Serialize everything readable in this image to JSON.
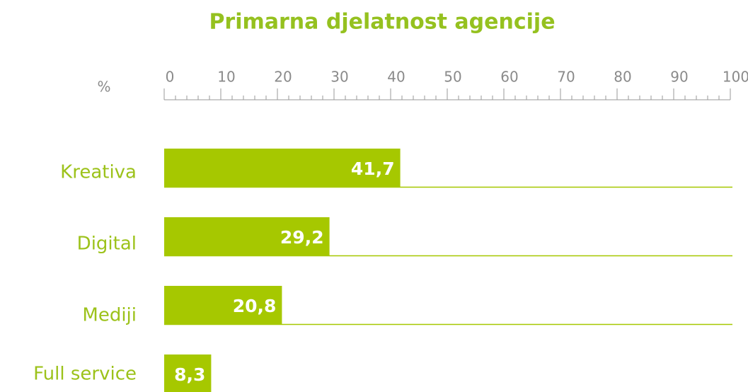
{
  "chart_data": {
    "type": "hbar",
    "title": "Primarna djelatnost agencije",
    "x_label": "%",
    "categories": [
      "Kreativa",
      "Digital",
      "Mediji",
      "Full service"
    ],
    "values": [
      41.7,
      29.2,
      20.8,
      8.3
    ],
    "value_labels": [
      "41,7",
      "29,2",
      "20,8",
      "8,3"
    ],
    "color": "#a6c800",
    "xlim": [
      0,
      100
    ],
    "xticks": [
      0,
      10,
      20,
      30,
      40,
      50,
      60,
      70,
      80,
      90,
      100
    ]
  }
}
